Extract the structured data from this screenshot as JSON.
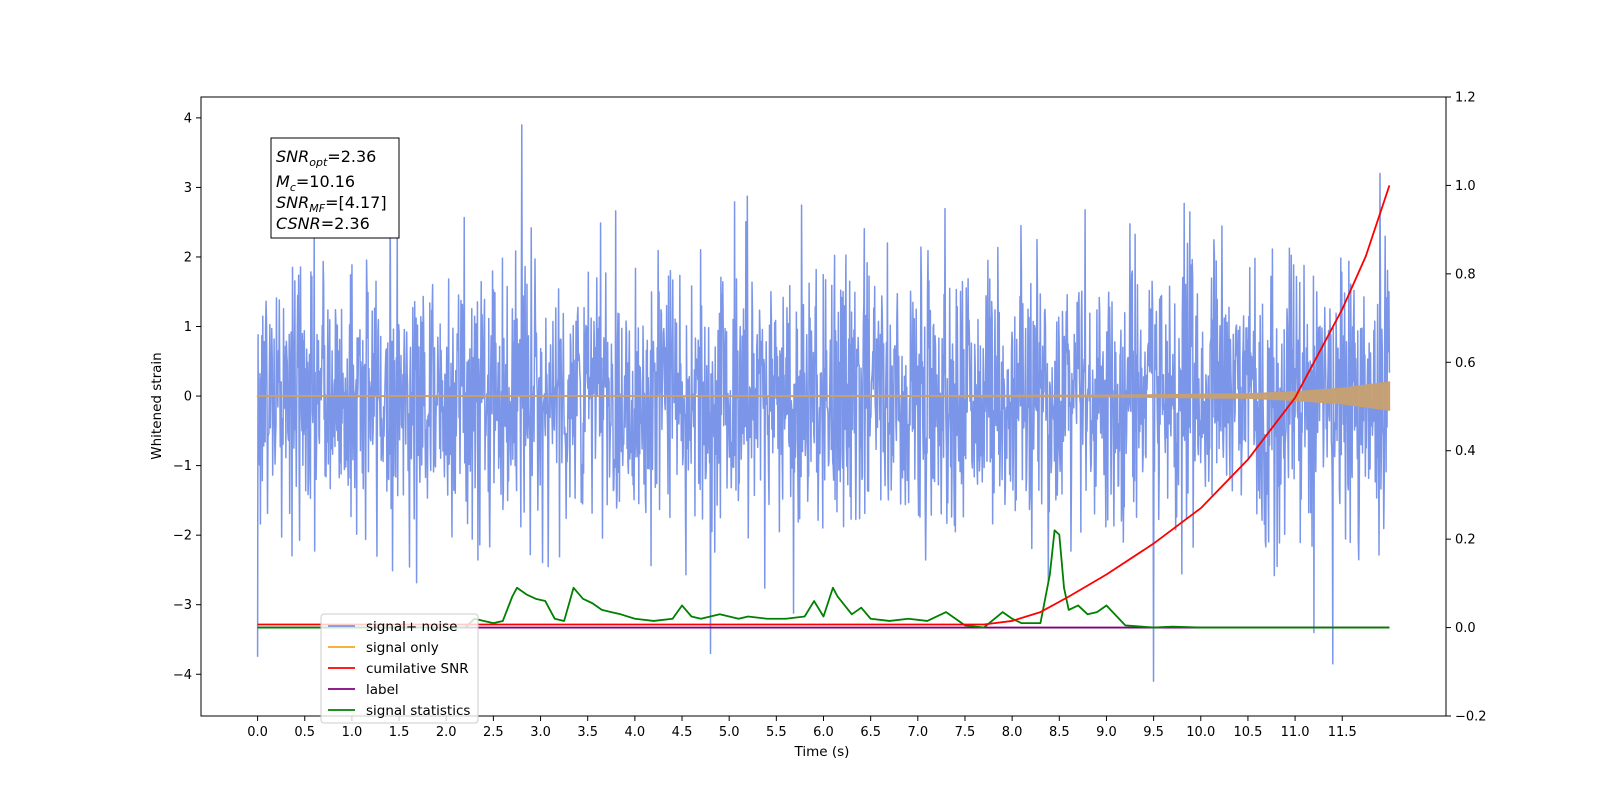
{
  "chart_data": {
    "type": "line",
    "xlabel": "Time (s)",
    "ylabel": "Whitened strain",
    "xlim": [
      -0.6,
      12.6
    ],
    "ylim": [
      -4.6,
      4.3
    ],
    "y2lim": [
      -0.2,
      1.2
    ],
    "x_ticks": [
      0.0,
      0.5,
      1.0,
      1.5,
      2.0,
      2.5,
      3.0,
      3.5,
      4.0,
      4.5,
      5.0,
      5.5,
      6.0,
      6.5,
      7.0,
      7.5,
      8.0,
      8.5,
      9.0,
      9.5,
      10.0,
      10.5,
      11.0,
      11.5
    ],
    "x_tick_labels": [
      "0.0",
      "0.5",
      "1.0",
      "1.5",
      "2.0",
      "2.5",
      "3.0",
      "3.5",
      "4.0",
      "4.5",
      "5.0",
      "5.5",
      "6.0",
      "6.5",
      "7.0",
      "7.5",
      "8.0",
      "8.5",
      "9.0",
      "9.5",
      "10.0",
      "10.5",
      "11.0",
      "11.5"
    ],
    "y_ticks": [
      -4,
      -3,
      -2,
      -1,
      0,
      1,
      2,
      3,
      4
    ],
    "y_tick_labels": [
      "−4",
      "−3",
      "−2",
      "−1",
      "0",
      "1",
      "2",
      "3",
      "4"
    ],
    "y2_ticks": [
      -0.2,
      0.0,
      0.2,
      0.4,
      0.6,
      0.8,
      1.0,
      1.2
    ],
    "y2_tick_labels": [
      "−0.2",
      "0.0",
      "0.2",
      "0.4",
      "0.6",
      "0.8",
      "1.0",
      "1.2"
    ],
    "grid": false,
    "legend_position": "lower-left",
    "annotation_lines": [
      {
        "base": "SNR",
        "sub": "opt",
        "rest": "=2.36"
      },
      {
        "base": "M",
        "sub": "c",
        "rest": "=10.16"
      },
      {
        "base": "SNR",
        "sub": "MF",
        "rest": "=[4.17]"
      },
      {
        "base": "CSNR",
        "sub": "",
        "rest": "=2.36"
      }
    ],
    "series": [
      {
        "name": "signal+ noise",
        "axis": "left",
        "color": "#7b96e8",
        "x_range": [
          0,
          12
        ],
        "sample_count": 2400,
        "envelope_typical": [
          -2.0,
          2.0
        ],
        "extreme_spikes": [
          [
            0.0,
            -3.75
          ],
          [
            2.8,
            3.9
          ],
          [
            4.8,
            -3.7
          ],
          [
            9.5,
            -4.1
          ],
          [
            11.2,
            -3.4
          ],
          [
            11.4,
            -3.85
          ],
          [
            11.9,
            3.2
          ]
        ]
      },
      {
        "name": "signal only",
        "axis": "left",
        "color": "#f5a623",
        "amplitude": {
          "x": [
            0,
            7.0,
            9.0,
            10.5,
            11.0,
            11.5,
            12.0
          ],
          "y": [
            0.002,
            0.004,
            0.01,
            0.03,
            0.06,
            0.11,
            0.2
          ]
        }
      },
      {
        "name": "cumilative SNR",
        "axis": "right",
        "color": "#ff0000",
        "x": [
          0,
          7.7,
          8.0,
          8.3,
          8.6,
          9.0,
          9.5,
          10.0,
          10.5,
          11.0,
          11.5,
          11.75,
          12.0
        ],
        "y": [
          0.007,
          0.007,
          0.015,
          0.035,
          0.07,
          0.12,
          0.19,
          0.27,
          0.38,
          0.52,
          0.72,
          0.84,
          1.0
        ]
      },
      {
        "name": "label",
        "axis": "right",
        "color": "#800080",
        "x": [
          0,
          12
        ],
        "y": [
          0.0,
          0.0
        ]
      },
      {
        "name": "signal statistics",
        "axis": "right",
        "color": "#008000",
        "x": [
          0,
          2.2,
          2.3,
          2.4,
          2.5,
          2.6,
          2.7,
          2.75,
          2.85,
          2.95,
          3.05,
          3.15,
          3.25,
          3.35,
          3.45,
          3.55,
          3.65,
          3.75,
          3.85,
          4.0,
          4.2,
          4.4,
          4.5,
          4.6,
          4.7,
          4.9,
          5.1,
          5.2,
          5.4,
          5.6,
          5.8,
          5.9,
          6.0,
          6.1,
          6.15,
          6.3,
          6.4,
          6.5,
          6.7,
          6.9,
          7.1,
          7.3,
          7.5,
          7.7,
          7.9,
          8.0,
          8.1,
          8.3,
          8.4,
          8.45,
          8.5,
          8.55,
          8.6,
          8.7,
          8.8,
          8.9,
          9.0,
          9.2,
          9.5,
          9.7,
          10.0,
          12.0
        ],
        "y": [
          0.0,
          0.0,
          0.02,
          0.015,
          0.01,
          0.015,
          0.07,
          0.09,
          0.075,
          0.065,
          0.06,
          0.02,
          0.015,
          0.09,
          0.065,
          0.055,
          0.04,
          0.035,
          0.03,
          0.02,
          0.015,
          0.02,
          0.05,
          0.025,
          0.02,
          0.03,
          0.02,
          0.025,
          0.02,
          0.02,
          0.025,
          0.06,
          0.025,
          0.09,
          0.07,
          0.03,
          0.045,
          0.02,
          0.015,
          0.02,
          0.015,
          0.035,
          0.005,
          0.0,
          0.035,
          0.02,
          0.01,
          0.01,
          0.12,
          0.22,
          0.21,
          0.09,
          0.04,
          0.05,
          0.03,
          0.035,
          0.05,
          0.005,
          0.0,
          0.002,
          0.0,
          0.0
        ]
      }
    ]
  }
}
